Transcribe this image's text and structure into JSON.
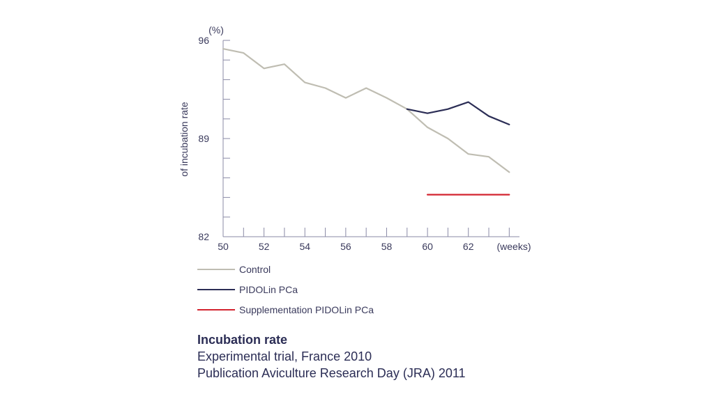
{
  "chart_data": {
    "type": "line",
    "y_unit": "(%)",
    "x_unit": "(weeks)",
    "ylabel": "of incubation rate",
    "xlim": [
      50,
      64.5
    ],
    "ylim": [
      82,
      96
    ],
    "x_ticks": [
      50,
      52,
      54,
      56,
      58,
      60,
      62
    ],
    "y_ticks": [
      82,
      89,
      96
    ],
    "series": [
      {
        "name": "Control",
        "color": "#bfbdb2",
        "points": [
          [
            50,
            95.4
          ],
          [
            51,
            95.1
          ],
          [
            52,
            94.0
          ],
          [
            53,
            94.3
          ],
          [
            54,
            93.0
          ],
          [
            55,
            92.6
          ],
          [
            56,
            91.9
          ],
          [
            57,
            92.6
          ],
          [
            58,
            91.9
          ],
          [
            59,
            91.1
          ],
          [
            60,
            89.8
          ],
          [
            61,
            89.0
          ],
          [
            62,
            87.9
          ],
          [
            63,
            87.7
          ],
          [
            64,
            86.6
          ]
        ]
      },
      {
        "name": "PIDOLin PCa",
        "color": "#2b2d55",
        "points": [
          [
            59,
            91.1
          ],
          [
            60,
            90.8
          ],
          [
            61,
            91.1
          ],
          [
            62,
            91.6
          ],
          [
            63,
            90.6
          ],
          [
            64,
            90.0
          ]
        ]
      },
      {
        "name": "Supplementation PIDOLin PCa",
        "color": "#d3232f",
        "points": [
          [
            60,
            85.0
          ],
          [
            64,
            85.0
          ]
        ]
      }
    ]
  },
  "legend": [
    {
      "label": "Control",
      "color": "#bfbdb2"
    },
    {
      "label": "PIDOLin PCa",
      "color": "#2b2d55"
    },
    {
      "label": "Supplementation PIDOLin PCa",
      "color": "#d3232f"
    }
  ],
  "caption": {
    "title": "Incubation rate",
    "line1": "Experimental trial, France 2010",
    "line2": "Publication Aviculture Research Day (JRA) 2011"
  }
}
